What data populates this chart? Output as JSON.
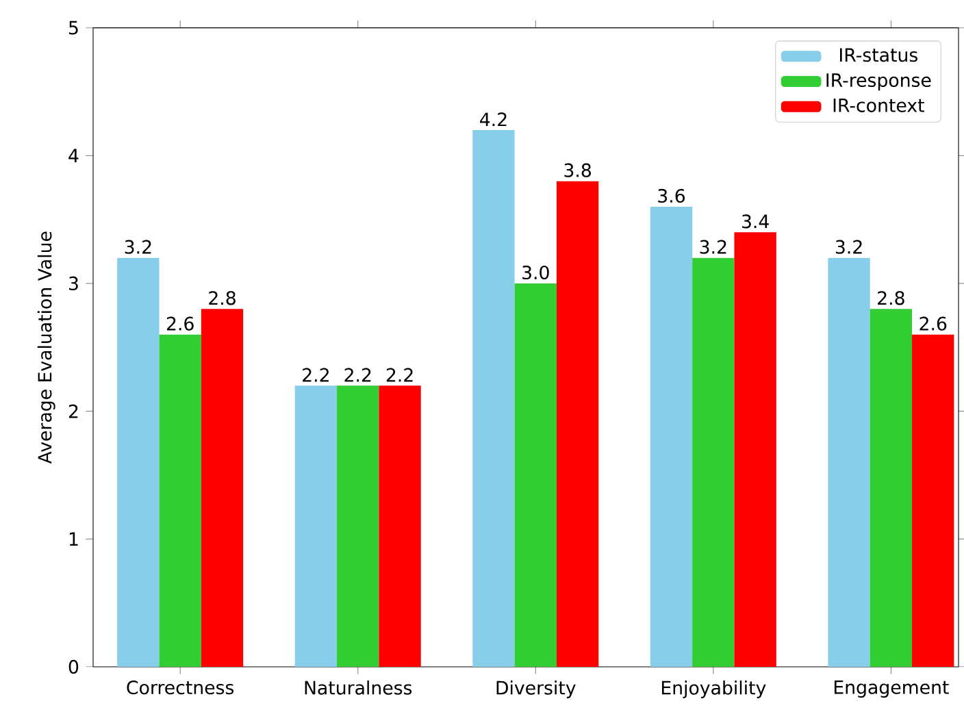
{
  "chart_data": {
    "type": "bar",
    "ylabel": "Average Evaluation Value",
    "categories": [
      "Correctness",
      "Naturalness",
      "Diversity",
      "Enjoyability",
      "Engagement"
    ],
    "series": [
      {
        "name": "IR-status",
        "color": "#87ceeb",
        "values": [
          3.2,
          2.2,
          4.2,
          3.6,
          3.2
        ],
        "value_labels": [
          "3.2",
          "2.2",
          "4.2",
          "3.6",
          "3.2"
        ]
      },
      {
        "name": "IR-response",
        "color": "#32cd32",
        "values": [
          2.6,
          2.2,
          3.0,
          3.2,
          2.8
        ],
        "value_labels": [
          "2.6",
          "2.2",
          "3.0",
          "3.2",
          "2.8"
        ]
      },
      {
        "name": "IR-context",
        "color": "#ff0000",
        "values": [
          2.8,
          2.2,
          3.8,
          3.4,
          2.6
        ],
        "value_labels": [
          "2.8",
          "2.2",
          "3.8",
          "3.4",
          "2.6"
        ]
      }
    ],
    "ylim": [
      0,
      5
    ],
    "yticks": [
      0,
      1,
      2,
      3,
      4,
      5
    ],
    "grid": false,
    "legend": "top right"
  }
}
